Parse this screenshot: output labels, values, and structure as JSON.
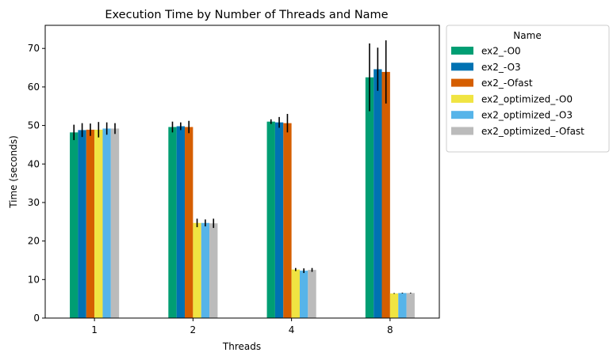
{
  "chart_data": {
    "type": "bar",
    "title": "Execution Time by Number of Threads and Name",
    "xlabel": "Threads",
    "ylabel": "Time (seconds)",
    "categories": [
      "1",
      "2",
      "4",
      "8"
    ],
    "ylim": [
      0,
      76
    ],
    "yticks": [
      0,
      10,
      20,
      30,
      40,
      50,
      60,
      70
    ],
    "grid": false,
    "legend": {
      "title": "Name",
      "placement": "outside right, top"
    },
    "series": [
      {
        "name": "ex2_-O0",
        "color": "#009e73",
        "values": [
          48.2,
          49.6,
          51.0,
          62.5
        ],
        "errors": [
          2.0,
          1.4,
          0.6,
          8.8
        ]
      },
      {
        "name": "ex2_-O3",
        "color": "#0072b2",
        "values": [
          48.8,
          49.8,
          50.8,
          64.6
        ],
        "errors": [
          1.8,
          1.0,
          1.4,
          5.6
        ]
      },
      {
        "name": "ex2_-Ofast",
        "color": "#d55e00",
        "values": [
          48.9,
          49.6,
          50.6,
          63.9
        ],
        "errors": [
          1.6,
          1.6,
          2.4,
          8.2
        ]
      },
      {
        "name": "ex2_optimized_-O0",
        "color": "#f0e442",
        "values": [
          48.9,
          24.7,
          12.6,
          6.4
        ],
        "errors": [
          2.0,
          1.1,
          0.4,
          0.1
        ]
      },
      {
        "name": "ex2_optimized_-O3",
        "color": "#56b4e9",
        "values": [
          49.2,
          24.7,
          12.3,
          6.5
        ],
        "errors": [
          1.6,
          0.9,
          0.6,
          0.1
        ]
      },
      {
        "name": "ex2_optimized_-Ofast",
        "color": "#bbbbbb",
        "values": [
          49.2,
          24.6,
          12.5,
          6.5
        ],
        "errors": [
          1.4,
          1.2,
          0.5,
          0.1
        ]
      }
    ]
  }
}
